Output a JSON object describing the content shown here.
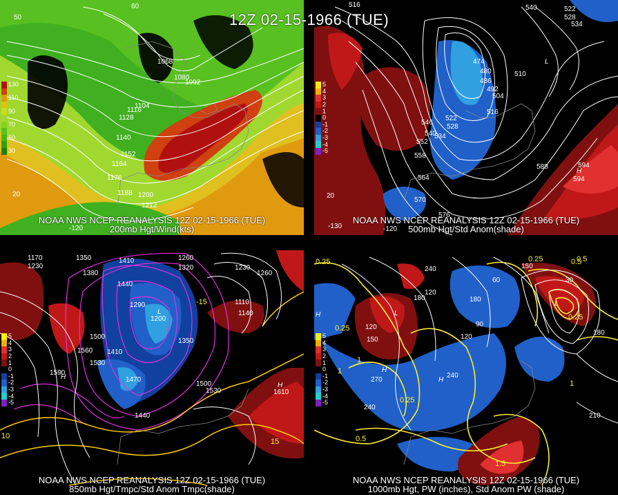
{
  "title": "12Z 02-15-1966 (TUE)",
  "panels": [
    {
      "caption1": "NOAA NWS NCEP REANALYSIS 12Z 02-15-1966 (TUE)",
      "caption2": "200mb Hgt/Wind(kts)",
      "legend": [
        "130",
        "110",
        "90",
        "70",
        "50",
        "30"
      ],
      "contour_labels": [
        "1068",
        "1080",
        "1092",
        "1104",
        "1116",
        "1128",
        "1140",
        "1152",
        "1164",
        "1176",
        "1188",
        "1200",
        "1212"
      ],
      "lonlat_labels": [
        "-120",
        "20",
        "50",
        "60"
      ]
    },
    {
      "caption1": "NOAA NWS NCEP REANALYSIS 12Z 02-15-1966 (TUE)",
      "caption2": "500mb Hgt/Std Anom(shade)",
      "legend": [
        "5",
        "4",
        "3",
        "2",
        "1",
        "0",
        "-1",
        "-2",
        "-3",
        "-4",
        "-5"
      ],
      "contour_labels": [
        "474",
        "480",
        "486",
        "492",
        "504",
        "510",
        "516",
        "522",
        "528",
        "534",
        "540",
        "546",
        "552",
        "558",
        "564",
        "570",
        "576",
        "588",
        "594",
        "516",
        "522",
        "528",
        "534",
        "540"
      ],
      "markers": [
        "L",
        "H",
        "594"
      ],
      "lonlat_labels": [
        "-120",
        "-130",
        "20"
      ]
    },
    {
      "caption1": "NOAA NWS NCEP REANALYSIS 12Z 02-15-1966 (TUE)",
      "caption2": "850mb Hgt/Tmpc/Std Anom Tmpc(shade)",
      "legend": [
        "5",
        "4",
        "3",
        "2",
        "1",
        "0",
        "-1",
        "-2",
        "-3",
        "-4",
        "-5"
      ],
      "contour_labels": [
        "1170",
        "1230",
        "1350",
        "1380",
        "1410",
        "1440",
        "1260",
        "1290",
        "1320",
        "1200",
        "1230",
        "1260",
        "1110",
        "1140",
        "1500",
        "1560",
        "1530",
        "1590",
        "1410",
        "1470",
        "1440",
        "1500",
        "1530",
        "1350"
      ],
      "markers": [
        "H",
        "1610",
        "H",
        "L"
      ],
      "temp_labels": [
        "-15",
        "15",
        "10"
      ]
    },
    {
      "caption1": "NOAA NWS NCEP REANALYSIS 12Z 02-15-1966 (TUE)",
      "caption2": "1000mb Hgt, PW (inches), Std Anom PW (shade)",
      "legend": [
        "5",
        "4",
        "3",
        "2",
        "1",
        "0",
        "-1",
        "-2",
        "-3",
        "-4",
        "-5"
      ],
      "contour_labels": [
        "240",
        "210",
        "180",
        "150",
        "120",
        "90",
        "60",
        "30",
        "120",
        "150",
        "180",
        "270",
        "240",
        "240",
        "120",
        "210",
        "180"
      ],
      "pw_labels": [
        "0.25",
        "0.25",
        "0.25",
        "0.25",
        "0.5",
        "0.5",
        "0.25",
        "1",
        "1",
        "1",
        "1.5",
        "0.5"
      ],
      "markers": [
        "H",
        "H",
        "H",
        "L",
        "L"
      ]
    }
  ],
  "colors": {
    "wind_legend": [
      "#b01010",
      "#e09a10",
      "#e0c010",
      "#c8e020",
      "#88d020",
      "#40b818"
    ],
    "anom_legend": [
      "#ffee00",
      "#f0b000",
      "#e03030",
      "#c01818",
      "#801010",
      "#000000",
      "#1040a0",
      "#2060c8",
      "#30a0e0",
      "#20d0d0",
      "#8020c0"
    ]
  }
}
